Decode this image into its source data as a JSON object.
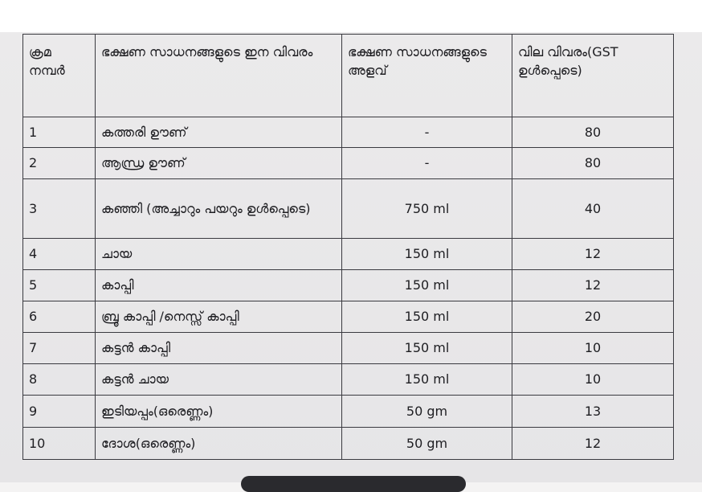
{
  "table": {
    "headers": [
      "ക്രമ നമ്പർ",
      "ഭക്ഷണ സാധനങ്ങളുടെ ഇന വിവരം",
      "ഭക്ഷണ സാധനങ്ങളുടെ അളവ്",
      "വില വിവരം(GST ഉൾപ്പെടെ)"
    ],
    "rows": [
      {
        "no": "1",
        "item": "കത്തരി ഊണ്",
        "qty": "-",
        "price": "80"
      },
      {
        "no": "2",
        "item": "ആന്ധ്ര ഊണ്",
        "qty": "-",
        "price": "80"
      },
      {
        "no": "3",
        "item": "കഞ്ഞി (അച്ചാറും പയറും ഉൾപ്പെടെ)",
        "qty": "750 ml",
        "price": "40"
      },
      {
        "no": "4",
        "item": "ചായ",
        "qty": "150 ml",
        "price": "12"
      },
      {
        "no": "5",
        "item": "കാപ്പി",
        "qty": "150 ml",
        "price": "12"
      },
      {
        "no": "6",
        "item": "ബ്രൂ കാപ്പി /നെസ്സ് കാപ്പി",
        "qty": "150 ml",
        "price": "20"
      },
      {
        "no": "7",
        "item": "കട്ടൻ കാപ്പി",
        "qty": "150 ml",
        "price": "10"
      },
      {
        "no": "8",
        "item": "കട്ടൻ ചായ",
        "qty": "150 ml",
        "price": "10"
      },
      {
        "no": "9",
        "item": "ഇടിയപ്പം(ഒരെണ്ണം)",
        "qty": "50 gm",
        "price": "13"
      },
      {
        "no": "10",
        "item": "ദോശ(ഒരെണ്ണം)",
        "qty": "50 gm",
        "price": "12"
      }
    ]
  }
}
